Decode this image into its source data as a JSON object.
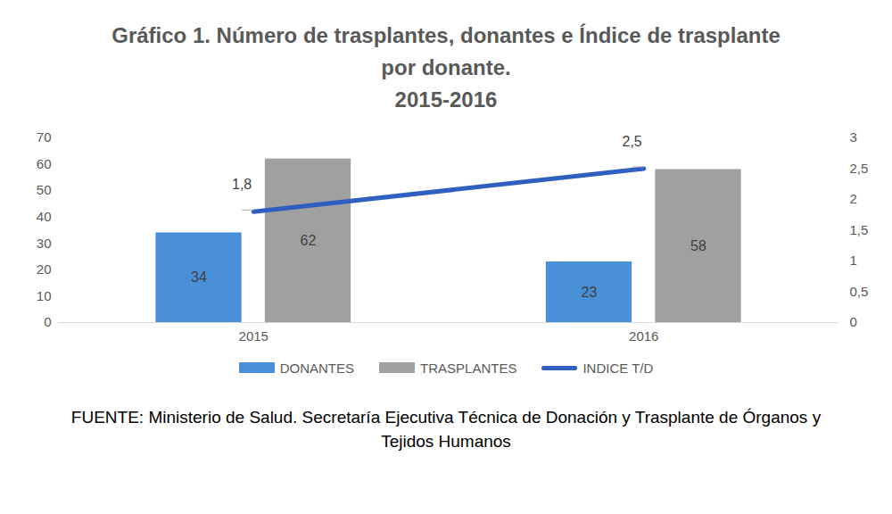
{
  "chart_data": {
    "type": "bar",
    "title": "Gráfico 1. Número de trasplantes, donantes e Índice de trasplante por donante.",
    "subtitle": "2015-2016",
    "caption": "FUENTE: Ministerio de Salud. Secretaría Ejecutiva Técnica de Donación y Trasplante de Órganos y Tejidos Humanos",
    "categories": [
      "2015",
      "2016"
    ],
    "series": [
      {
        "name": "DONANTES",
        "type": "bar",
        "color": "#4a90d9",
        "values": [
          34,
          23
        ]
      },
      {
        "name": "TRASPLANTES",
        "type": "bar",
        "color": "#a0a0a0",
        "values": [
          62,
          58
        ]
      },
      {
        "name": "INDICE T/D",
        "type": "line",
        "color": "#2e5fc1",
        "axis": "y2",
        "values": [
          1.8,
          2.5
        ],
        "value_labels": [
          "1,8",
          "2,5"
        ]
      }
    ],
    "ylim": [
      0,
      70
    ],
    "yticks": [
      0,
      10,
      20,
      30,
      40,
      50,
      60,
      70
    ],
    "y2lim": [
      0,
      3
    ],
    "y2ticks": [
      0,
      {
        "value": 0.5,
        "label": "0,5"
      },
      1,
      {
        "value": 1.5,
        "label": "1,5"
      },
      2,
      {
        "value": 2.5,
        "label": "2,5"
      },
      3
    ],
    "grid": false,
    "legend": "bottom",
    "data_labels": true
  }
}
